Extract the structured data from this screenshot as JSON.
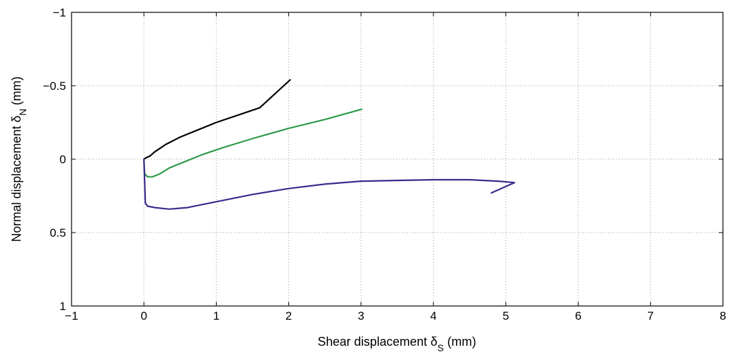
{
  "chart_data": {
    "type": "line",
    "title": "",
    "xlabel": {
      "prefix": "Shear displacement  ",
      "symbol": "δ",
      "sub": "S",
      "suffix": " (mm)"
    },
    "ylabel": {
      "prefix": "Normal displacement ",
      "symbol": "δ",
      "sub": "N",
      "suffix": " (mm)"
    },
    "xlim": [
      -1,
      8
    ],
    "ylim": [
      -1,
      1
    ],
    "y_inverted": true,
    "grid": true,
    "legend": "none",
    "x_ticks": [
      "−1",
      "0",
      "1",
      "2",
      "3",
      "4",
      "5",
      "6",
      "7",
      "8"
    ],
    "x_tick_values": [
      -1,
      0,
      1,
      2,
      3,
      4,
      5,
      6,
      7,
      8
    ],
    "y_ticks": [
      "−1",
      "−0.5",
      "0",
      "0.5",
      "1"
    ],
    "y_tick_values": [
      -1,
      -0.5,
      0,
      0.5,
      1
    ],
    "series": [
      {
        "color": "#000000",
        "x": [
          0.0,
          0.03,
          0.08,
          0.15,
          0.3,
          0.5,
          0.75,
          1.0,
          1.3,
          1.6,
          2.02
        ],
        "y": [
          0.0,
          -0.01,
          -0.02,
          -0.05,
          -0.1,
          -0.15,
          -0.2,
          -0.25,
          -0.3,
          -0.35,
          -0.54
        ]
      },
      {
        "color": "#2e9a4a",
        "x": [
          0.0,
          0.01,
          0.05,
          0.12,
          0.22,
          0.35,
          0.55,
          0.8,
          1.1,
          1.5,
          2.0,
          2.5,
          3.01
        ],
        "y": [
          0.0,
          0.1,
          0.12,
          0.12,
          0.1,
          0.06,
          0.02,
          -0.03,
          -0.08,
          -0.14,
          -0.21,
          -0.27,
          -0.34
        ]
      },
      {
        "color": "#3a2a8c",
        "x": [
          0.0,
          0.02,
          0.05,
          0.15,
          0.35,
          0.6,
          1.0,
          1.5,
          2.0,
          2.5,
          3.0,
          3.5,
          4.0,
          4.5,
          4.9,
          5.12,
          4.98,
          4.8
        ],
        "y": [
          0.0,
          0.3,
          0.32,
          0.33,
          0.34,
          0.33,
          0.29,
          0.24,
          0.2,
          0.17,
          0.15,
          0.145,
          0.14,
          0.14,
          0.15,
          0.16,
          0.19,
          0.23
        ]
      }
    ]
  }
}
